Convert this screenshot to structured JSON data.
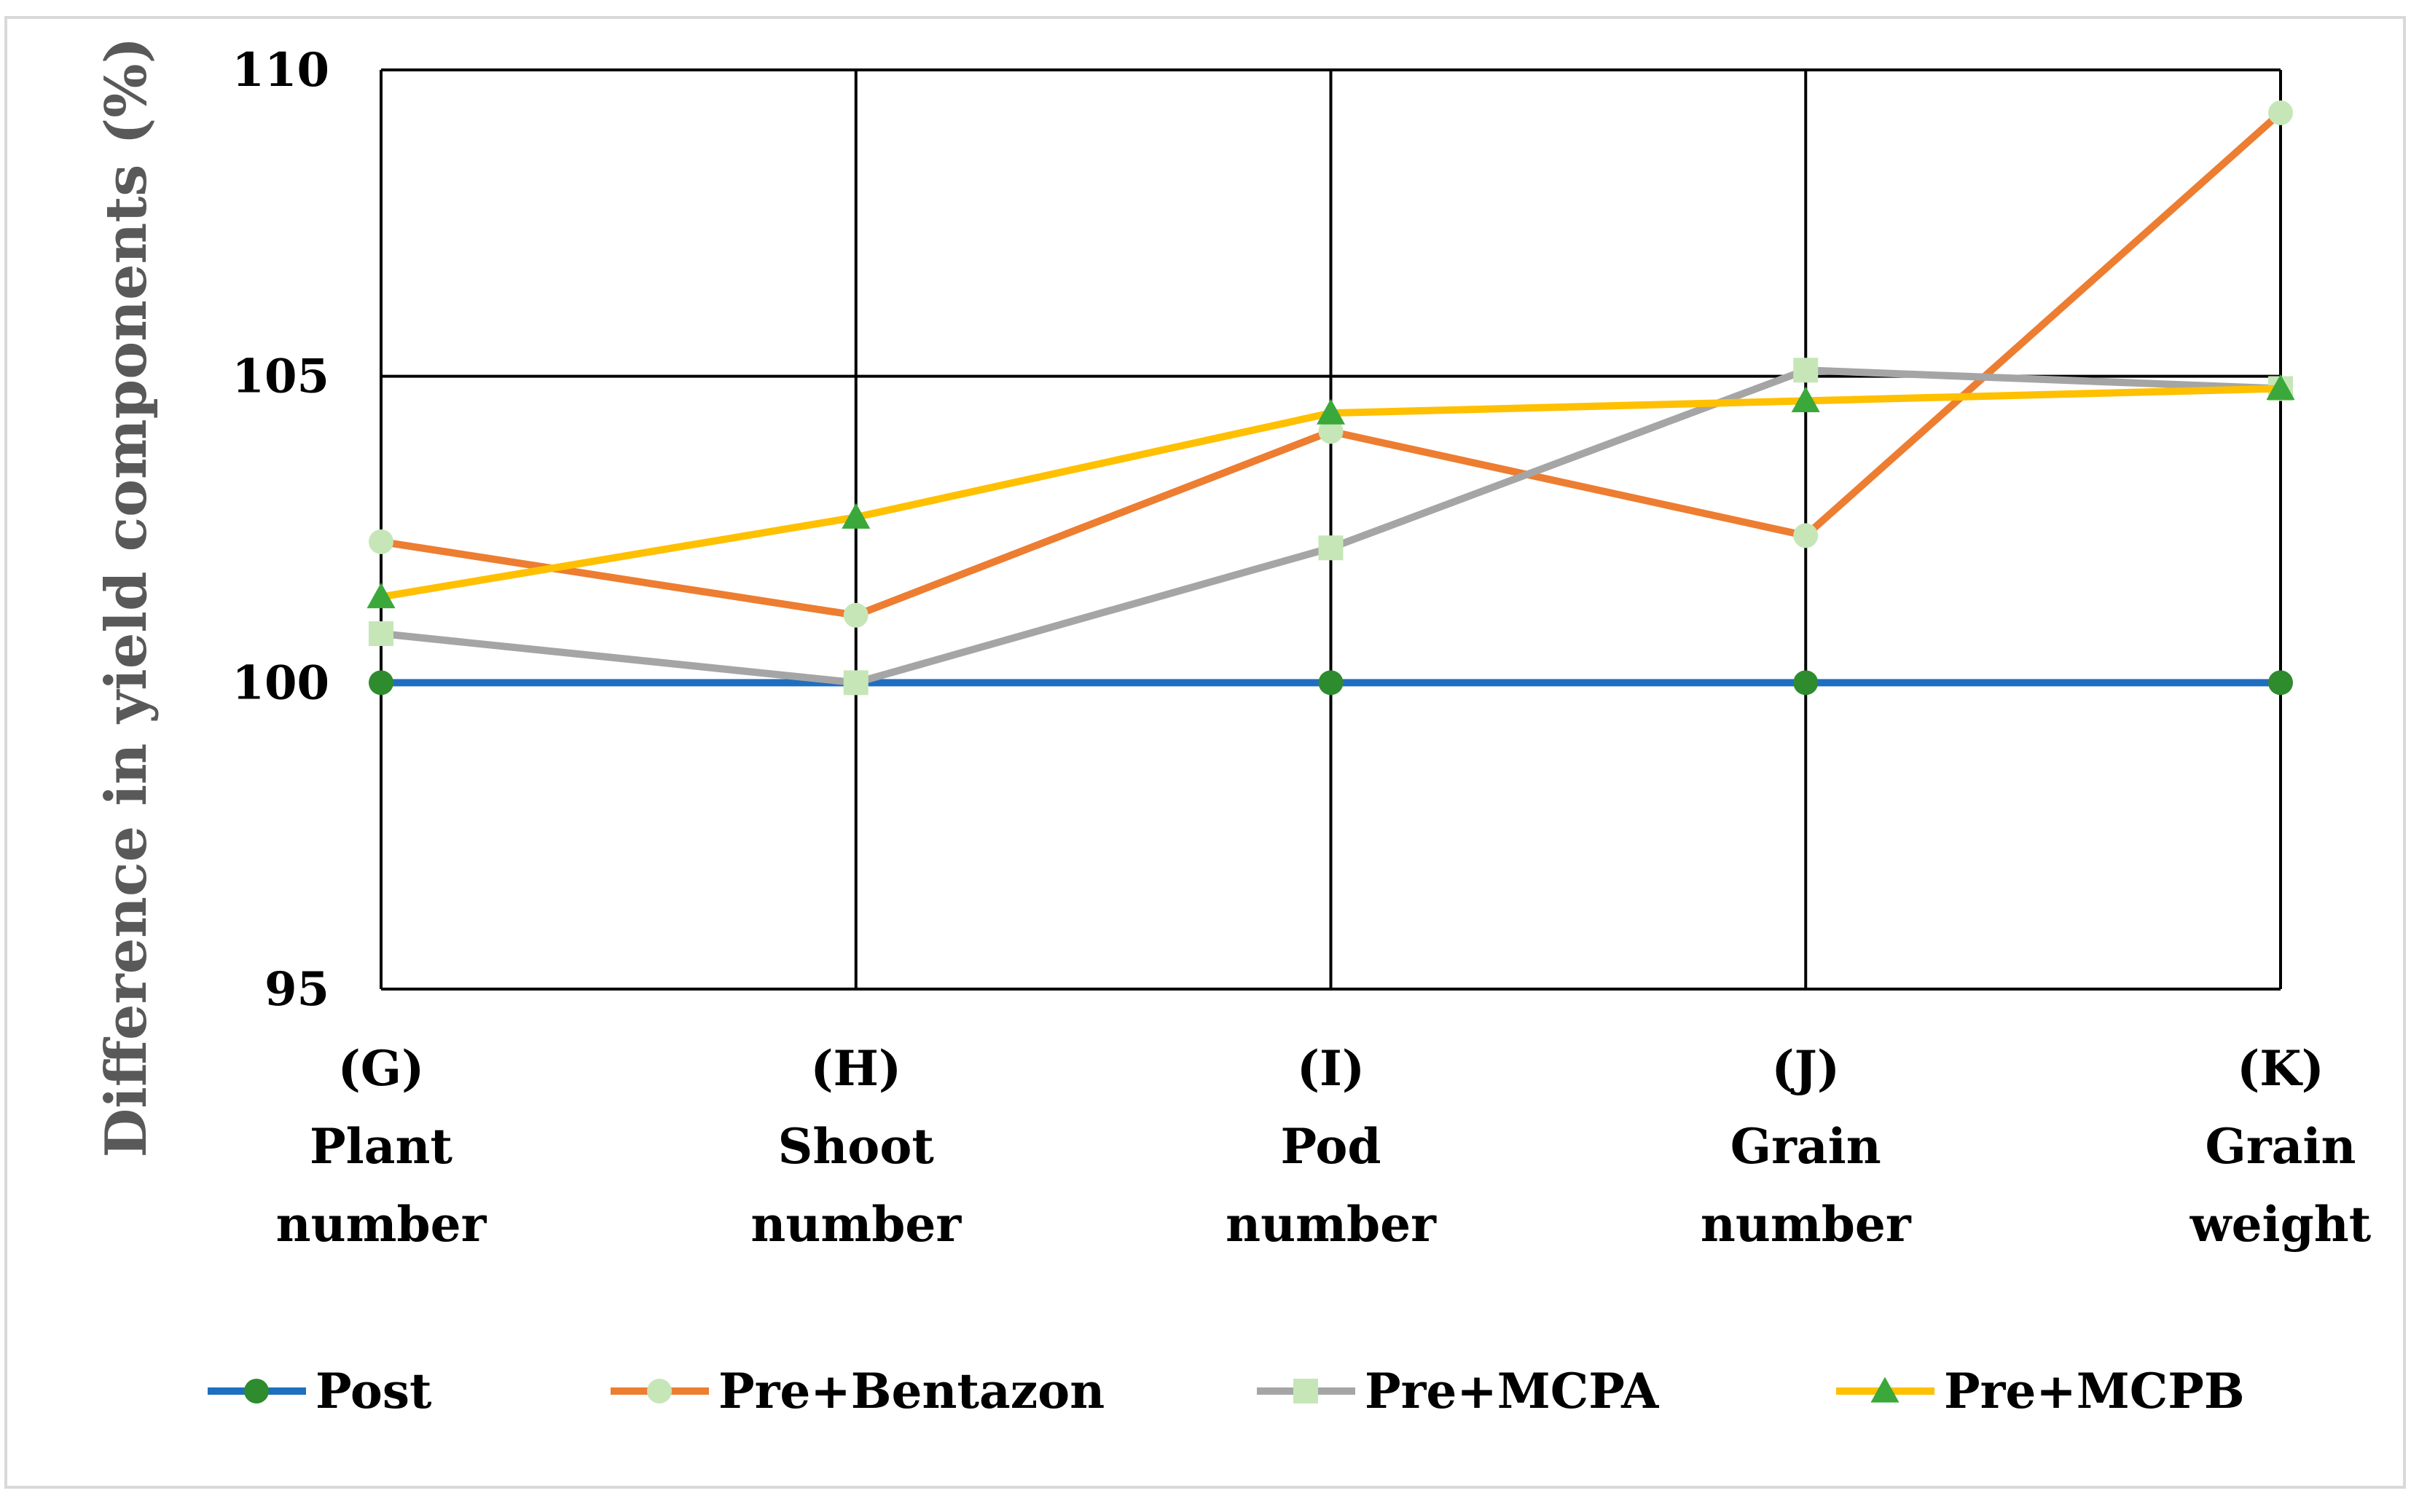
{
  "chart_data": {
    "type": "line",
    "title": "",
    "xlabel": "",
    "ylabel": "Difference in yield components (%)",
    "ylim": [
      95,
      110
    ],
    "yticks": [
      95,
      100,
      105,
      110
    ],
    "grid": true,
    "legend_position": "bottom",
    "categories": [
      {
        "code": "(G)",
        "line1": "Plant",
        "line2": "number"
      },
      {
        "code": "(H)",
        "line1": "Shoot",
        "line2": "number"
      },
      {
        "code": "(I)",
        "line1": "Pod",
        "line2": "number"
      },
      {
        "code": "(J)",
        "line1": "Grain",
        "line2": "number"
      },
      {
        "code": "(K)",
        "line1": "Grain",
        "line2": "weight"
      }
    ],
    "series": [
      {
        "name": "Post",
        "values": [
          100,
          100,
          100,
          100,
          100
        ],
        "line_color": "#1f6fc1",
        "marker": "circle",
        "marker_color": "#2e8b2e"
      },
      {
        "name": "Pre+Bentazon",
        "values": [
          102.3,
          101.1,
          104.1,
          102.4,
          109.3
        ],
        "line_color": "#ed7d31",
        "marker": "circle",
        "marker_color": "#c6e6b8"
      },
      {
        "name": "Pre+MCPA",
        "values": [
          100.8,
          100.0,
          102.2,
          105.1,
          104.8
        ],
        "line_color": "#a5a5a5",
        "marker": "square",
        "marker_color": "#c6e6b8"
      },
      {
        "name": "Pre+MCPB",
        "values": [
          101.4,
          102.7,
          104.4,
          104.6,
          104.8
        ],
        "line_color": "#ffc000",
        "marker": "triangle",
        "marker_color": "#3aa83a"
      }
    ]
  }
}
